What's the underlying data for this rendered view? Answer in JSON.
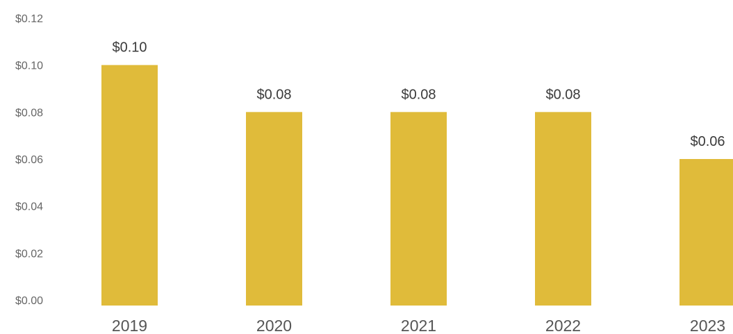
{
  "chart_data": {
    "type": "bar",
    "title": "",
    "xlabel": "",
    "ylabel": "",
    "categories": [
      "2019",
      "2020",
      "2021",
      "2022",
      "2023"
    ],
    "values": [
      0.1,
      0.08,
      0.08,
      0.08,
      0.06
    ],
    "data_labels": [
      "$0.10",
      "$0.08",
      "$0.08",
      "$0.08",
      "$0.06"
    ],
    "ylim": [
      0,
      0.12
    ],
    "yticks": [
      0.0,
      0.02,
      0.04,
      0.06,
      0.08,
      0.1,
      0.12
    ],
    "ytick_labels": [
      "$0.00",
      "$0.02",
      "$0.04",
      "$0.06",
      "$0.08",
      "$0.10",
      "$0.12"
    ],
    "grid": false,
    "legend": "none",
    "bar_color": "#E0BB3A"
  }
}
